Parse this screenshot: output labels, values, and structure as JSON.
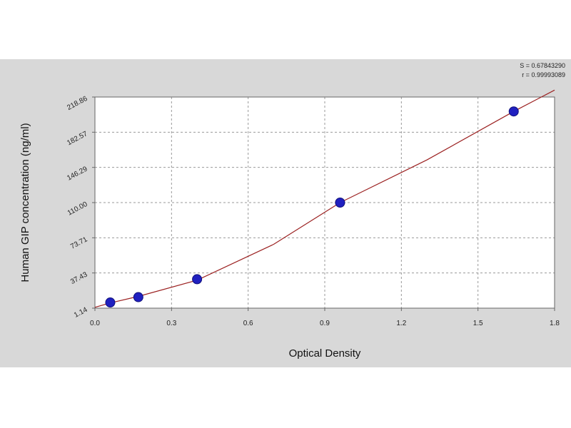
{
  "chart_data": {
    "type": "scatter",
    "title": "",
    "xlabel": "Optical Density",
    "ylabel": "Human GIP concentration (ng/ml)",
    "x_ticks": [
      "0.0",
      "0.3",
      "0.6",
      "0.9",
      "1.2",
      "1.5",
      "1.8"
    ],
    "y_ticks": [
      "1.14",
      "37.43",
      "73.71",
      "110.00",
      "146.29",
      "182.57",
      "218.86"
    ],
    "xlim": [
      0,
      1.8
    ],
    "ylim": [
      1.14,
      218.86
    ],
    "grid": true,
    "stats": [
      "S = 0.67843290",
      "r = 0.99993089"
    ],
    "series": [
      {
        "kind": "points",
        "x": [
          0.06,
          0.17,
          0.4,
          0.96,
          1.64
        ],
        "y": [
          7.0,
          12.5,
          31.0,
          110.0,
          204.0
        ]
      },
      {
        "kind": "fit",
        "x": [
          0.0,
          0.06,
          0.17,
          0.4,
          0.7,
          0.96,
          1.3,
          1.64,
          1.8
        ],
        "y": [
          2.0,
          6.5,
          13.3,
          30.0,
          67.0,
          110.0,
          154.0,
          204.0,
          226.0
        ]
      }
    ],
    "colors": {
      "points": "#2020c0",
      "point_edge": "#10107a",
      "fit": "#9b2020",
      "grid": "#9a9a9a",
      "axis": "#666666"
    }
  }
}
